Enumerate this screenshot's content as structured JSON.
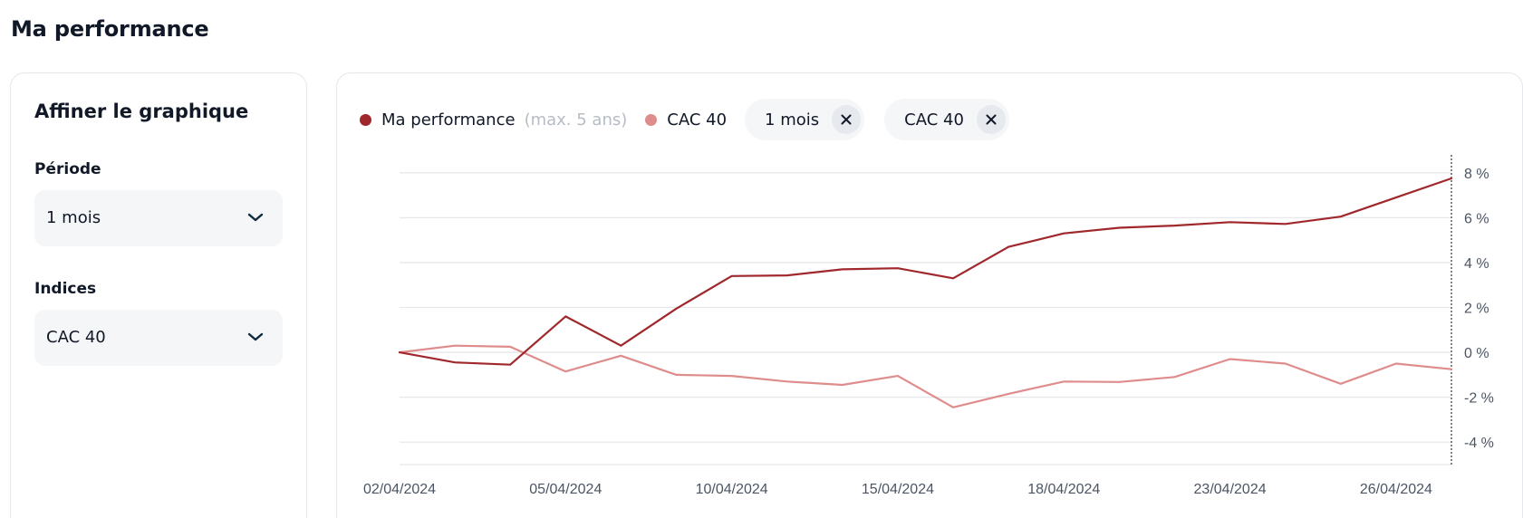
{
  "page_title": "Ma performance",
  "filters": {
    "title": "Affiner le graphique",
    "periode": {
      "label": "Période",
      "value": "1 mois"
    },
    "indices": {
      "label": "Indices",
      "value": "CAC 40"
    }
  },
  "legend": {
    "series1_label": "Ma performance",
    "series1_note": "(max. 5 ans)",
    "series2_label": "CAC 40",
    "chips": [
      {
        "label": "1 mois"
      },
      {
        "label": "CAC 40"
      }
    ]
  },
  "colors": {
    "series1": "#a0282c",
    "series2": "#df8c8c",
    "grid": "#e6e8eb"
  },
  "chart_data": {
    "type": "line",
    "x": [
      "02/04/2024",
      "03/04/2024",
      "04/04/2024",
      "05/04/2024",
      "08/04/2024",
      "09/04/2024",
      "10/04/2024",
      "11/04/2024",
      "12/04/2024",
      "15/04/2024",
      "16/04/2024",
      "17/04/2024",
      "18/04/2024",
      "19/04/2024",
      "22/04/2024",
      "23/04/2024",
      "24/04/2024",
      "25/04/2024",
      "26/04/2024",
      "29/04/2024"
    ],
    "x_tick_labels": [
      "02/04/2024",
      "05/04/2024",
      "10/04/2024",
      "15/04/2024",
      "18/04/2024",
      "23/04/2024",
      "26/04/2024"
    ],
    "x_tick_indices": [
      0,
      3,
      6,
      9,
      12,
      15,
      18
    ],
    "series": [
      {
        "name": "Ma performance",
        "values": [
          0.0,
          -0.45,
          -0.55,
          1.6,
          0.3,
          1.95,
          3.4,
          3.43,
          3.7,
          3.75,
          3.3,
          4.7,
          5.3,
          5.55,
          5.65,
          5.8,
          5.72,
          6.05,
          6.9,
          7.75
        ]
      },
      {
        "name": "CAC 40",
        "values": [
          0.0,
          0.3,
          0.25,
          -0.85,
          -0.15,
          -1.0,
          -1.05,
          -1.3,
          -1.45,
          -1.05,
          -2.45,
          -1.85,
          -1.3,
          -1.32,
          -1.1,
          -0.3,
          -0.5,
          -1.4,
          -0.5,
          -0.75
        ]
      }
    ],
    "y_ticks": [
      -4,
      -2,
      0,
      2,
      4,
      6,
      8
    ],
    "y_tick_labels": [
      "-4 %",
      "-2 %",
      "0 %",
      "2 %",
      "4 %",
      "6 %",
      "8 %"
    ],
    "ylim": [
      -5,
      8.8
    ],
    "y_axis_position": "right",
    "grid": true,
    "legend_position": "top-left"
  }
}
